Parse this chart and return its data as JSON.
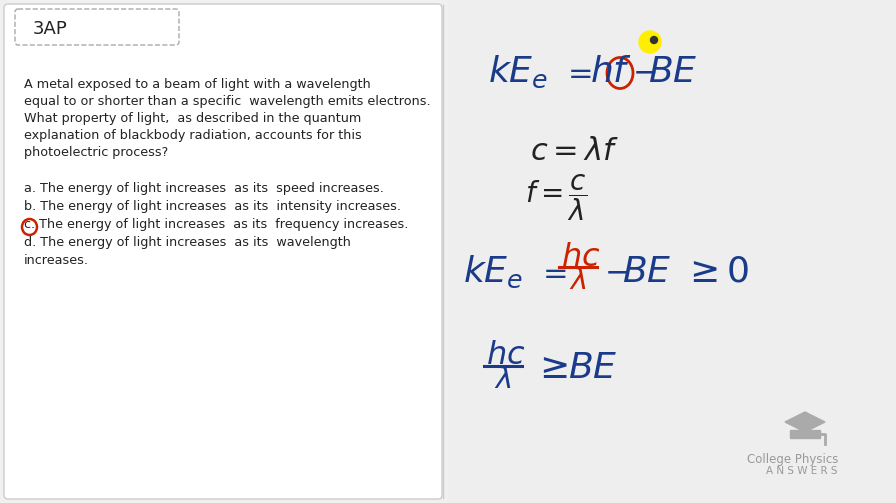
{
  "bg_color": "#f0f0f0",
  "left_bg": "#ffffff",
  "title_box_text": "3AP",
  "question_text": [
    "A metal exposed to a beam of light with a wavelength",
    "equal to or shorter than a specific  wavelength emits electrons.",
    "What property of light,  as described in the quantum",
    "explanation of blackbody radiation, accounts for this",
    "photoelectric process?"
  ],
  "choices": [
    "a. The energy of light increases  as its  speed increases.",
    "b. The energy of light increases  as its  intensity increases.",
    "c. The energy of light increases  as its  frequency increases.",
    "d. The energy of light increases  as its  wavelength"
  ],
  "choice_d_cont": "increases.",
  "blue_color": "#1a3a8a",
  "red_color": "#cc2200",
  "dark_color": "#222222",
  "gray_color": "#888888",
  "yellow_color": "#ffee00",
  "logo_text1": "College Physics",
  "logo_text2": "A N S W E R S"
}
